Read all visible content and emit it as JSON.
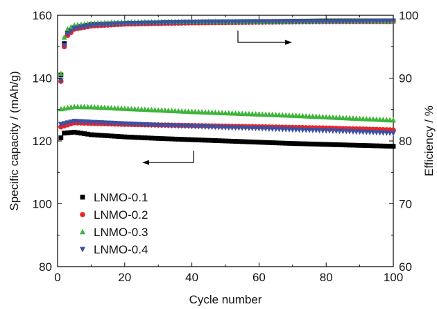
{
  "chart_data": {
    "type": "scatter",
    "title": "",
    "xlabel": "Cycle number",
    "ylabel": "Specific capacity / (mAh/g)",
    "y2label": "Efficiency / %",
    "xlim": [
      0,
      100
    ],
    "ylim": [
      80,
      160
    ],
    "y2lim": [
      60,
      100
    ],
    "xticks": [
      0,
      20,
      40,
      60,
      80,
      100
    ],
    "yticks": [
      80,
      100,
      120,
      140,
      160
    ],
    "y2ticks": [
      60,
      70,
      80,
      90,
      100
    ],
    "grid": false,
    "legend_position": "bottom-left",
    "annotations": [
      "arrow pointing to right axis (efficiency)",
      "arrow pointing to left axis (capacity)"
    ],
    "series": [
      {
        "name": "LNMO-0.1",
        "marker": "square",
        "color": "#000000",
        "capacity_points": [
          [
            1,
            121
          ],
          [
            2,
            122.5
          ],
          [
            5,
            122.8
          ],
          [
            10,
            122
          ],
          [
            20,
            121.3
          ],
          [
            30,
            120.8
          ],
          [
            40,
            120.4
          ],
          [
            50,
            120
          ],
          [
            60,
            119.6
          ],
          [
            70,
            119.2
          ],
          [
            80,
            118.9
          ],
          [
            90,
            118.6
          ],
          [
            100,
            118.3
          ]
        ],
        "efficiency_points": [
          [
            1,
            90.5
          ],
          [
            2,
            95.5
          ],
          [
            3,
            97.2
          ],
          [
            5,
            98.0
          ],
          [
            10,
            98.5
          ],
          [
            20,
            98.7
          ],
          [
            40,
            98.9
          ],
          [
            60,
            99.0
          ],
          [
            80,
            99.1
          ],
          [
            100,
            99.1
          ]
        ]
      },
      {
        "name": "LNMO-0.2",
        "marker": "circle",
        "color": "#e8262a",
        "capacity_points": [
          [
            1,
            124.5
          ],
          [
            5,
            125.8
          ],
          [
            10,
            125.6
          ],
          [
            20,
            125.3
          ],
          [
            30,
            125.1
          ],
          [
            40,
            124.9
          ],
          [
            50,
            124.7
          ],
          [
            60,
            124.5
          ],
          [
            70,
            124.3
          ],
          [
            80,
            124.1
          ],
          [
            90,
            123.8
          ],
          [
            100,
            123.5
          ]
        ],
        "efficiency_points": [
          [
            1,
            89.5
          ],
          [
            2,
            95.0
          ],
          [
            3,
            96.8
          ],
          [
            5,
            97.8
          ],
          [
            10,
            98.3
          ],
          [
            20,
            98.6
          ],
          [
            40,
            98.8
          ],
          [
            60,
            98.9
          ],
          [
            80,
            99.0
          ],
          [
            100,
            99.0
          ]
        ]
      },
      {
        "name": "LNMO-0.3",
        "marker": "triangle-up",
        "color": "#3db53a",
        "capacity_points": [
          [
            1,
            130.2
          ],
          [
            5,
            130.9
          ],
          [
            10,
            130.8
          ],
          [
            20,
            130.3
          ],
          [
            30,
            129.8
          ],
          [
            40,
            129.3
          ],
          [
            50,
            128.9
          ],
          [
            60,
            128.5
          ],
          [
            70,
            128.1
          ],
          [
            80,
            127.6
          ],
          [
            90,
            127.1
          ],
          [
            100,
            126.6
          ]
        ],
        "efficiency_points": [
          [
            1,
            90.7
          ],
          [
            2,
            96.5
          ],
          [
            3,
            97.8
          ],
          [
            5,
            98.4
          ],
          [
            10,
            98.7
          ],
          [
            20,
            98.9
          ],
          [
            40,
            99.0
          ],
          [
            60,
            99.0
          ],
          [
            80,
            99.1
          ],
          [
            100,
            99.1
          ]
        ]
      },
      {
        "name": "LNMO-0.4",
        "marker": "triangle-down",
        "color": "#3c50a4",
        "capacity_points": [
          [
            1,
            125.3
          ],
          [
            5,
            126.3
          ],
          [
            10,
            126.0
          ],
          [
            20,
            125.5
          ],
          [
            30,
            125.0
          ],
          [
            40,
            124.7
          ],
          [
            50,
            124.3
          ],
          [
            60,
            124.0
          ],
          [
            70,
            123.6
          ],
          [
            80,
            123.3
          ],
          [
            90,
            122.9
          ],
          [
            100,
            122.5
          ]
        ],
        "efficiency_points": [
          [
            1,
            89.6
          ],
          [
            2,
            95.2
          ],
          [
            3,
            97.0
          ],
          [
            5,
            97.9
          ],
          [
            10,
            98.4
          ],
          [
            20,
            98.7
          ],
          [
            40,
            98.9
          ],
          [
            60,
            99.0
          ],
          [
            80,
            99.0
          ],
          [
            100,
            99.1
          ]
        ]
      }
    ]
  }
}
